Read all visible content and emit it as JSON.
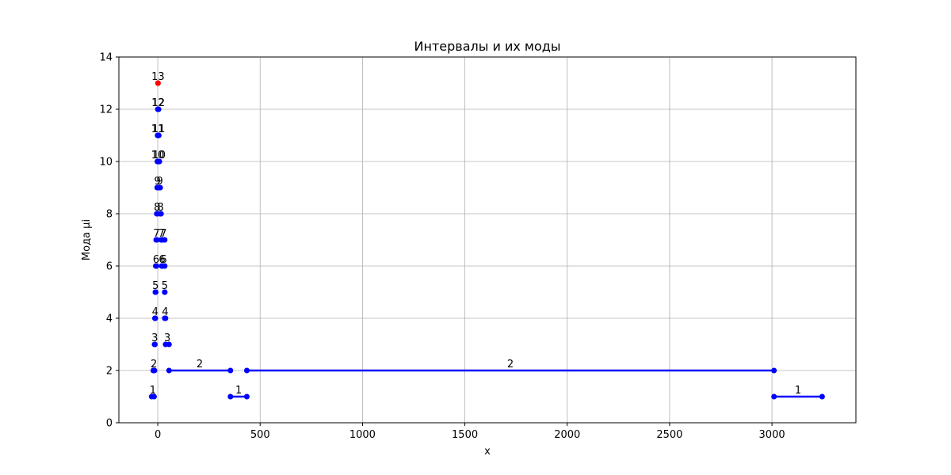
{
  "chart_data": {
    "type": "line",
    "title": "Интервалы и их моды",
    "xlabel": "x",
    "ylabel": "Мода μi",
    "xlim": [
      -190,
      3410
    ],
    "ylim": [
      0,
      14
    ],
    "x_ticks": [
      0,
      500,
      1000,
      1500,
      2000,
      2500,
      3000
    ],
    "y_ticks": [
      0,
      2,
      4,
      6,
      8,
      10,
      12,
      14
    ],
    "grid": true,
    "colors": {
      "segment": "#0000ff",
      "highlight": "#ff0000",
      "grid": "#b0b0b0"
    },
    "intervals": [
      {
        "x1": -30,
        "x2": -18,
        "mode": 1,
        "label": "1"
      },
      {
        "x1": -22,
        "x2": -16,
        "mode": 2,
        "label": "2"
      },
      {
        "x1": -16,
        "x2": -14,
        "mode": 3,
        "label": "3"
      },
      {
        "x1": -14,
        "x2": -12,
        "mode": 4,
        "label": "4"
      },
      {
        "x1": -12,
        "x2": -10,
        "mode": 5,
        "label": "5"
      },
      {
        "x1": -10,
        "x2": -6,
        "mode": 6,
        "label": "6"
      },
      {
        "x1": -8,
        "x2": -4,
        "mode": 7,
        "label": "7"
      },
      {
        "x1": -5,
        "x2": -1,
        "mode": 8,
        "label": "8"
      },
      {
        "x1": -3,
        "x2": 0,
        "mode": 9,
        "label": "9"
      },
      {
        "x1": -2,
        "x2": 1,
        "mode": 10,
        "label": "10"
      },
      {
        "x1": -1,
        "x2": 1,
        "mode": 11,
        "label": "11"
      },
      {
        "x1": 0,
        "x2": 2,
        "mode": 12,
        "label": "12"
      },
      {
        "x1": 1,
        "x2": 1,
        "mode": 13,
        "label": "13",
        "highlight": true
      },
      {
        "x1": 2,
        "x2": 4,
        "mode": 12,
        "label": "12"
      },
      {
        "x1": 3,
        "x2": 5,
        "mode": 11,
        "label": "11"
      },
      {
        "x1": 5,
        "x2": 8,
        "mode": 10,
        "label": "10"
      },
      {
        "x1": 8,
        "x2": 12,
        "mode": 9,
        "label": "9"
      },
      {
        "x1": 12,
        "x2": 16,
        "mode": 8,
        "label": "8"
      },
      {
        "x1": 16,
        "x2": 20,
        "mode": 7,
        "label": "7"
      },
      {
        "x1": 19,
        "x2": 23,
        "mode": 6,
        "label": "6"
      },
      {
        "x1": 23,
        "x2": 34,
        "mode": 7,
        "label": "7"
      },
      {
        "x1": 24,
        "x2": 34,
        "mode": 6,
        "label": "6"
      },
      {
        "x1": 34,
        "x2": 34,
        "mode": 5,
        "label": "5"
      },
      {
        "x1": 34,
        "x2": 38,
        "mode": 4,
        "label": "4"
      },
      {
        "x1": 38,
        "x2": 55,
        "mode": 3,
        "label": "3"
      },
      {
        "x1": 55,
        "x2": 355,
        "mode": 2,
        "label": "2"
      },
      {
        "x1": 355,
        "x2": 435,
        "mode": 1,
        "label": "1"
      },
      {
        "x1": 435,
        "x2": 3010,
        "mode": 2,
        "label": "2"
      },
      {
        "x1": 3010,
        "x2": 3245,
        "mode": 1,
        "label": "1"
      }
    ]
  }
}
